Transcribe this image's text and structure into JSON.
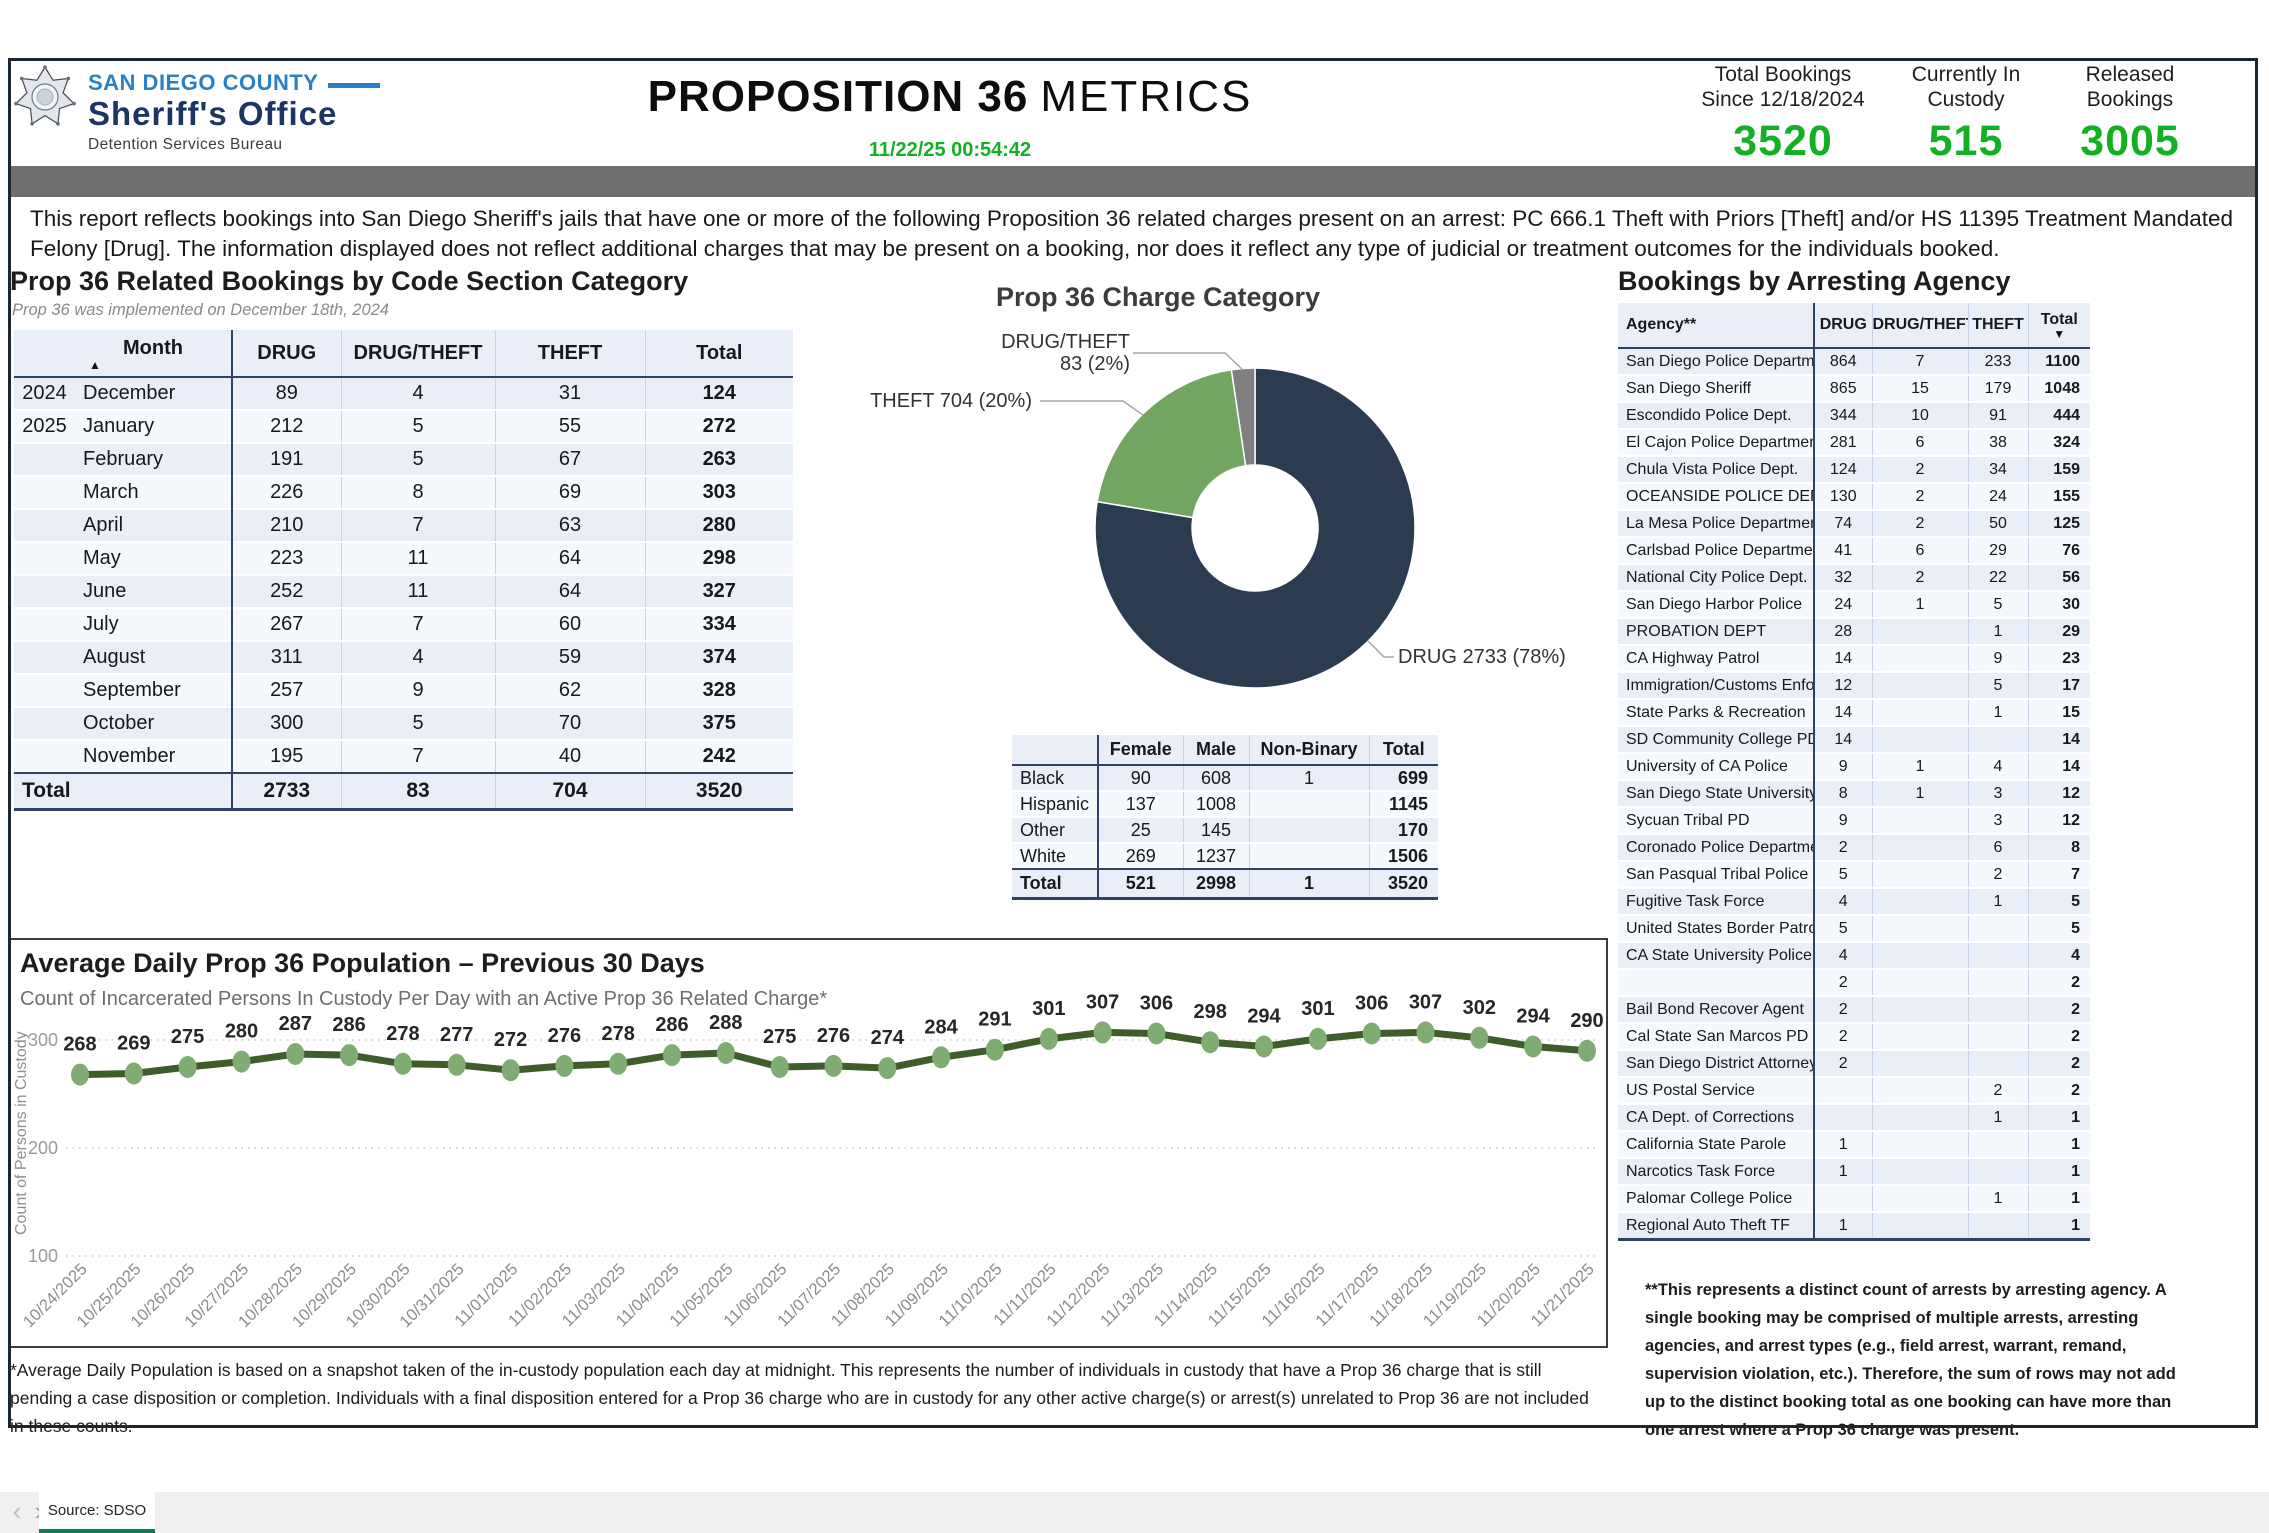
{
  "header": {
    "brand": {
      "county": "SAN DIEGO COUNTY",
      "office": "Sheriff's Office",
      "bureau": "Detention Services Bureau"
    },
    "title": {
      "main": "PROPOSITION 36",
      "suffix": "METRICS"
    },
    "timestamp": "11/22/25 00:54:42",
    "stats": [
      {
        "label": "Total Bookings\nSince 12/18/2024",
        "value": "3520"
      },
      {
        "label": "Currently In\nCustody",
        "value": "515"
      },
      {
        "label": "Released\nBookings",
        "value": "3005"
      }
    ],
    "accent_green": "#12b022"
  },
  "description": "This report reflects bookings into San Diego Sheriff's jails that have one or more of the following Proposition 36 related charges present on an arrest: PC 666.1 Theft with Priors [Theft] and/or HS 11395 Treatment Mandated Felony [Drug]. The information displayed does not reflect additional charges that may be present on a booking, nor does it reflect any type of judicial or treatment outcomes for the individuals booked.",
  "bookings_by_month": {
    "title": "Prop 36 Related Bookings by Code Section Category",
    "subtitle": "Prop 36 was implemented on December 18th, 2024",
    "columns": [
      "",
      "Month",
      "DRUG",
      "DRUG/THEFT",
      "THEFT",
      "Total"
    ],
    "rows": [
      {
        "year": "2024",
        "month": "December",
        "drug": "89",
        "drug_theft": "4",
        "theft": "31",
        "total": "124"
      },
      {
        "year": "2025",
        "month": "January",
        "drug": "212",
        "drug_theft": "5",
        "theft": "55",
        "total": "272"
      },
      {
        "year": "",
        "month": "February",
        "drug": "191",
        "drug_theft": "5",
        "theft": "67",
        "total": "263"
      },
      {
        "year": "",
        "month": "March",
        "drug": "226",
        "drug_theft": "8",
        "theft": "69",
        "total": "303"
      },
      {
        "year": "",
        "month": "April",
        "drug": "210",
        "drug_theft": "7",
        "theft": "63",
        "total": "280"
      },
      {
        "year": "",
        "month": "May",
        "drug": "223",
        "drug_theft": "11",
        "theft": "64",
        "total": "298"
      },
      {
        "year": "",
        "month": "June",
        "drug": "252",
        "drug_theft": "11",
        "theft": "64",
        "total": "327"
      },
      {
        "year": "",
        "month": "July",
        "drug": "267",
        "drug_theft": "7",
        "theft": "60",
        "total": "334"
      },
      {
        "year": "",
        "month": "August",
        "drug": "311",
        "drug_theft": "4",
        "theft": "59",
        "total": "374"
      },
      {
        "year": "",
        "month": "September",
        "drug": "257",
        "drug_theft": "9",
        "theft": "62",
        "total": "328"
      },
      {
        "year": "",
        "month": "October",
        "drug": "300",
        "drug_theft": "5",
        "theft": "70",
        "total": "375"
      },
      {
        "year": "",
        "month": "November",
        "drug": "195",
        "drug_theft": "7",
        "theft": "40",
        "total": "242"
      }
    ],
    "total_row": {
      "label": "Total",
      "drug": "2733",
      "drug_theft": "83",
      "theft": "704",
      "total": "3520"
    }
  },
  "demographics": {
    "columns": [
      "",
      "Female",
      "Male",
      "Non-Binary",
      "Total"
    ],
    "rows": [
      {
        "group": "Black",
        "female": "90",
        "male": "608",
        "non_binary": "1",
        "total": "699"
      },
      {
        "group": "Hispanic",
        "female": "137",
        "male": "1008",
        "non_binary": "",
        "total": "1145"
      },
      {
        "group": "Other",
        "female": "25",
        "male": "145",
        "non_binary": "",
        "total": "170"
      },
      {
        "group": "White",
        "female": "269",
        "male": "1237",
        "non_binary": "",
        "total": "1506"
      }
    ],
    "total_row": {
      "group": "Total",
      "female": "521",
      "male": "2998",
      "non_binary": "1",
      "total": "3520"
    }
  },
  "arresting_agency": {
    "title": "Bookings by Arresting Agency",
    "columns": [
      "Agency**",
      "DRUG",
      "DRUG/THEFT",
      "THEFT",
      "Total"
    ],
    "rows": [
      [
        "San Diego Police Department",
        "864",
        "7",
        "233",
        "1100"
      ],
      [
        "San Diego Sheriff",
        "865",
        "15",
        "179",
        "1048"
      ],
      [
        "Escondido Police Dept.",
        "344",
        "10",
        "91",
        "444"
      ],
      [
        "El Cajon Police Department",
        "281",
        "6",
        "38",
        "324"
      ],
      [
        "Chula Vista Police Dept.",
        "124",
        "2",
        "34",
        "159"
      ],
      [
        "OCEANSIDE POLICE DEPT.",
        "130",
        "2",
        "24",
        "155"
      ],
      [
        "La Mesa Police Department",
        "74",
        "2",
        "50",
        "125"
      ],
      [
        "Carlsbad Police Department",
        "41",
        "6",
        "29",
        "76"
      ],
      [
        "National City Police Dept.",
        "32",
        "2",
        "22",
        "56"
      ],
      [
        "San Diego Harbor Police",
        "24",
        "1",
        "5",
        "30"
      ],
      [
        "PROBATION DEPT",
        "28",
        "",
        "1",
        "29"
      ],
      [
        "CA Highway Patrol",
        "14",
        "",
        "9",
        "23"
      ],
      [
        "Immigration/Customs Enforce",
        "12",
        "",
        "5",
        "17"
      ],
      [
        "State Parks & Recreation",
        "14",
        "",
        "1",
        "15"
      ],
      [
        "SD Community College PD",
        "14",
        "",
        "",
        "14"
      ],
      [
        "University of CA Police",
        "9",
        "1",
        "4",
        "14"
      ],
      [
        "San Diego State University",
        "8",
        "1",
        "3",
        "12"
      ],
      [
        "Sycuan Tribal PD",
        "9",
        "",
        "3",
        "12"
      ],
      [
        "Coronado Police Department",
        "2",
        "",
        "6",
        "8"
      ],
      [
        "San Pasqual Tribal Police",
        "5",
        "",
        "2",
        "7"
      ],
      [
        "Fugitive Task Force",
        "4",
        "",
        "1",
        "5"
      ],
      [
        "United States Border Patrol",
        "5",
        "",
        "",
        "5"
      ],
      [
        "CA State University Police",
        "4",
        "",
        "",
        "4"
      ],
      [
        "",
        "2",
        "",
        "",
        "2"
      ],
      [
        "Bail Bond Recover Agent",
        "2",
        "",
        "",
        "2"
      ],
      [
        "Cal State San Marcos PD",
        "2",
        "",
        "",
        "2"
      ],
      [
        "San Diego District Attorney",
        "2",
        "",
        "",
        "2"
      ],
      [
        "US Postal Service",
        "",
        "",
        "2",
        "2"
      ],
      [
        "CA Dept. of Corrections",
        "",
        "",
        "1",
        "1"
      ],
      [
        "California State Parole",
        "1",
        "",
        "",
        "1"
      ],
      [
        "Narcotics Task Force",
        "1",
        "",
        "",
        "1"
      ],
      [
        "Palomar College Police",
        "",
        "",
        "1",
        "1"
      ],
      [
        "Regional Auto Theft TF",
        "1",
        "",
        "",
        "1"
      ]
    ]
  },
  "chart_data": [
    {
      "type": "pie",
      "title": "Prop 36 Charge Category",
      "labels": [
        "DRUG",
        "THEFT",
        "DRUG/THEFT"
      ],
      "values": [
        2733,
        704,
        83
      ],
      "callouts": [
        "DRUG 2733 (78%)",
        "THEFT 704 (20%)",
        "DRUG/THEFT\n83 (2%)"
      ],
      "colors": [
        "#2b3c50",
        "#74a663",
        "#7f7f7f"
      ],
      "donut_hole": true,
      "legend_position": "callout-labels"
    },
    {
      "type": "line",
      "title": "Average Daily Prop 36 Population – Previous 30 Days",
      "subtitle": "Count of Incarcerated Persons In Custody Per Day with an Active Prop 36 Related Charge*",
      "ylabel": "Count of Persons in Custody",
      "yticks": [
        300,
        200,
        100
      ],
      "grid": true,
      "x": [
        "10/24/2025",
        "10/25/2025",
        "10/26/2025",
        "10/27/2025",
        "10/28/2025",
        "10/29/2025",
        "10/30/2025",
        "10/31/2025",
        "11/01/2025",
        "11/02/2025",
        "11/03/2025",
        "11/04/2025",
        "11/05/2025",
        "11/06/2025",
        "11/07/2025",
        "11/08/2025",
        "11/09/2025",
        "11/10/2025",
        "11/11/2025",
        "11/12/2025",
        "11/13/2025",
        "11/14/2025",
        "11/15/2025",
        "11/16/2025",
        "11/17/2025",
        "11/18/2025",
        "11/19/2025",
        "11/20/2025",
        "11/21/2025"
      ],
      "values": [
        268,
        269,
        275,
        280,
        287,
        286,
        278,
        277,
        272,
        276,
        278,
        286,
        288,
        275,
        276,
        274,
        284,
        291,
        301,
        307,
        306,
        298,
        294,
        301,
        306,
        307,
        302,
        294,
        290
      ],
      "line_color": "#3f5d2b",
      "marker_color": "#7fac73"
    }
  ],
  "footnotes": {
    "population": "*Average Daily Population is based on a snapshot taken of the in-custody population each day at midnight. This represents the number of individuals in custody that have a Prop 36 charge that is still pending a case disposition or completion. Individuals with a final disposition entered for a Prop 36 charge who are in custody for any other active charge(s) or arrest(s) unrelated to Prop 36 are not included in these counts.",
    "agency": "**This represents a distinct count of arrests by arresting agency. A single booking may be comprised of multiple arrests, arresting agencies, and arrest types (e.g., field arrest, warrant, remand, supervision violation, etc.). Therefore, the sum of rows may not add up to the distinct booking total as one booking can have more than one arrest where a Prop 36 charge was present.",
    "charge_note": "Prop 36 was implemented on December 18th, 2024"
  },
  "footer": {
    "tab_label": "Source: SDSO",
    "prev_icon": "‹",
    "next_icon": "›"
  }
}
